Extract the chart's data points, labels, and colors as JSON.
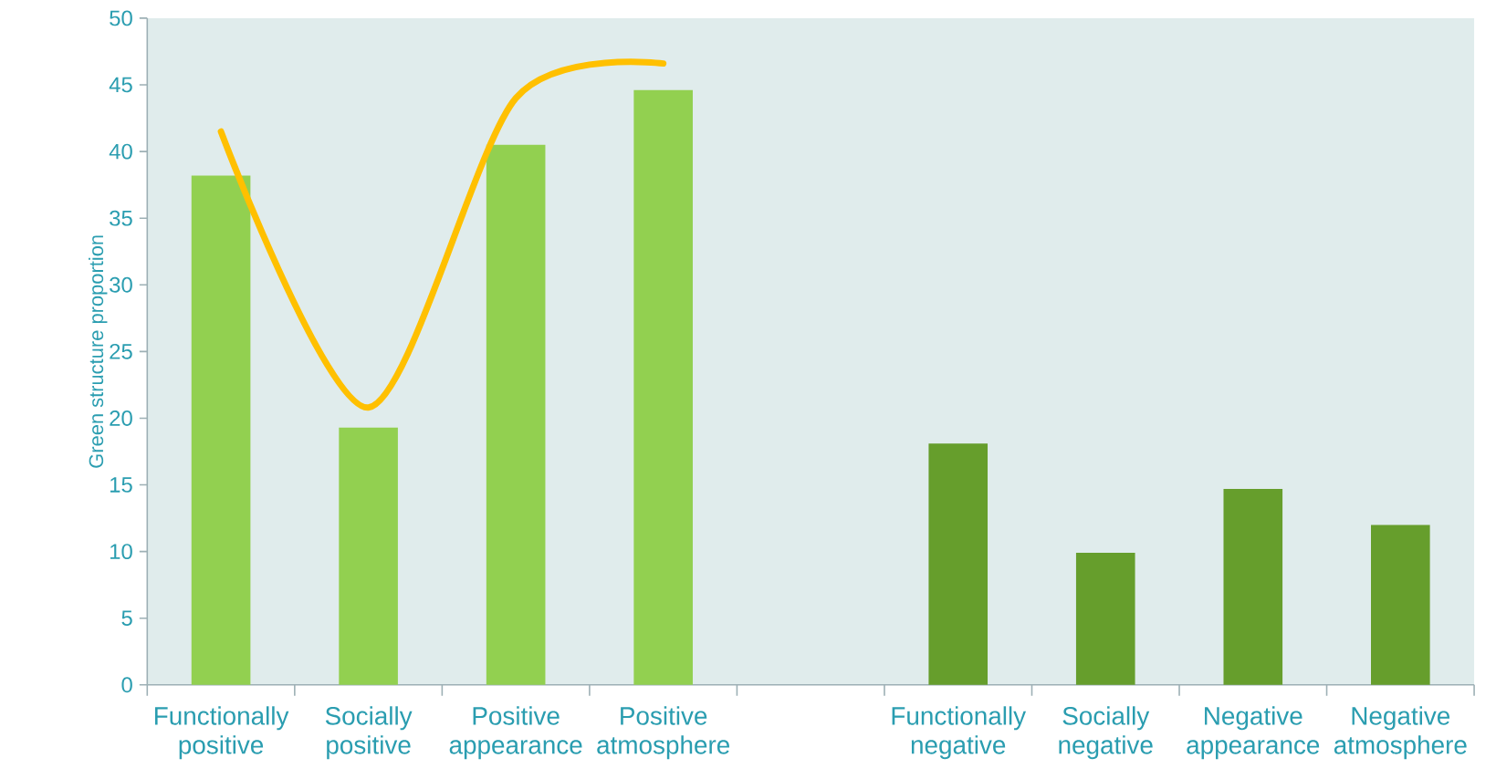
{
  "chart_data": {
    "type": "bar",
    "ylabel": "Green structure proportion",
    "categories": [
      "Functionally positive",
      "Socially positive",
      "Positive appearance",
      "Positive atmosphere",
      null,
      "Functionally negative",
      "Socially negative",
      "Negative appearance",
      "Negative atmosphere"
    ],
    "ylim": [
      0,
      50
    ],
    "yticks": [
      0,
      5,
      10,
      15,
      20,
      25,
      30,
      35,
      40,
      45,
      50
    ],
    "series": [
      {
        "type": "bar",
        "values": [
          38.2,
          19.3,
          40.5,
          44.6,
          null,
          18.1,
          9.9,
          14.7,
          12.0
        ],
        "colors": [
          "#92d050",
          "#92d050",
          "#92d050",
          "#92d050",
          null,
          "#669e2c",
          "#669e2c",
          "#669e2c",
          "#669e2c"
        ]
      },
      {
        "type": "line",
        "color": "#ffc000",
        "values": [
          41.5,
          20.8,
          44,
          46.6,
          null,
          null,
          null,
          null,
          null
        ]
      }
    ]
  }
}
